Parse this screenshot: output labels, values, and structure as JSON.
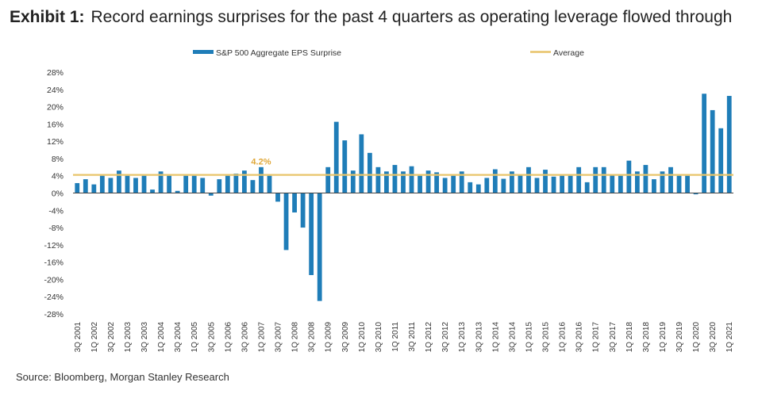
{
  "header": {
    "exhibit": "Exhibit 1:",
    "title": "Record earnings surprises for the past 4 quarters as operating leverage flowed through"
  },
  "source": "Source: Bloomberg, Morgan Stanley Research",
  "colors": {
    "bar": "#1f7db8",
    "average": "#e8c46a",
    "annotation": "#e0a83a",
    "axis": "#444444"
  },
  "chart_data": {
    "type": "bar",
    "title": "Record earnings surprises for the past 4 quarters as operating leverage flowed through",
    "series_name": "S&P 500 Aggregate EPS Surprise",
    "average_name": "Average",
    "average_value": 4.2,
    "average_label": "4.2%",
    "legend_position": "top",
    "ylim": [
      -28,
      28
    ],
    "yticks": [
      28,
      24,
      20,
      16,
      12,
      8,
      4,
      0,
      -4,
      -8,
      -12,
      -16,
      -20,
      -24,
      -28
    ],
    "ytick_labels": [
      "28%",
      "24%",
      "20%",
      "16%",
      "12%",
      "8%",
      "4%",
      "0%",
      "-4%",
      "-8%",
      "-12%",
      "-16%",
      "-20%",
      "-24%",
      "-28%"
    ],
    "grid": false,
    "categories": [
      "3Q 2001",
      "4Q 2001",
      "1Q 2002",
      "2Q 2002",
      "3Q 2002",
      "4Q 2002",
      "1Q 2003",
      "2Q 2003",
      "3Q 2003",
      "4Q 2003",
      "1Q 2004",
      "2Q 2004",
      "3Q 2004",
      "4Q 2004",
      "1Q 2005",
      "2Q 2005",
      "3Q 2005",
      "4Q 2005",
      "1Q 2006",
      "2Q 2006",
      "3Q 2006",
      "4Q 2006",
      "1Q 2007",
      "2Q 2007",
      "3Q 2007",
      "4Q 2007",
      "1Q 2008",
      "2Q 2008",
      "3Q 2008",
      "4Q 2008",
      "1Q 2009",
      "2Q 2009",
      "3Q 2009",
      "4Q 2009",
      "1Q 2010",
      "2Q 2010",
      "3Q 2010",
      "4Q 2010",
      "1Q 2011",
      "2Q 2011",
      "3Q 2011",
      "4Q 2011",
      "1Q 2012",
      "2Q 2012",
      "3Q 2012",
      "4Q 2012",
      "1Q 2013",
      "2Q 2013",
      "3Q 2013",
      "4Q 2013",
      "1Q 2014",
      "2Q 2014",
      "3Q 2014",
      "4Q 2014",
      "1Q 2015",
      "2Q 2015",
      "3Q 2015",
      "4Q 2015",
      "1Q 2016",
      "2Q 2016",
      "3Q 2016",
      "4Q 2016",
      "1Q 2017",
      "2Q 2017",
      "3Q 2017",
      "4Q 2017",
      "1Q 2018",
      "2Q 2018",
      "3Q 2018",
      "4Q 2018",
      "1Q 2019",
      "2Q 2019",
      "3Q 2019",
      "4Q 2019",
      "1Q 2020",
      "2Q 2020",
      "3Q 2020",
      "4Q 2020",
      "1Q 2021"
    ],
    "xtick_labels": [
      "3Q 2001",
      "1Q 2002",
      "3Q 2002",
      "1Q 2003",
      "3Q 2003",
      "1Q 2004",
      "3Q 2004",
      "1Q 2005",
      "3Q 2005",
      "1Q 2006",
      "3Q 2006",
      "1Q 2007",
      "3Q 2007",
      "1Q 2008",
      "3Q 2008",
      "1Q 2009",
      "3Q 2009",
      "1Q 2010",
      "3Q 2010",
      "1Q 2011",
      "3Q 2011",
      "1Q 2012",
      "3Q 2012",
      "1Q 2013",
      "3Q 2013",
      "1Q 2014",
      "3Q 2014",
      "1Q 2015",
      "3Q 2015",
      "1Q 2016",
      "3Q 2016",
      "1Q 2017",
      "3Q 2017",
      "1Q 2018",
      "3Q 2018",
      "1Q 2019",
      "3Q 2019",
      "1Q 2020",
      "3Q 2020",
      "1Q 2021"
    ],
    "values": [
      2.3,
      3.2,
      2.0,
      4.0,
      3.5,
      5.2,
      4.0,
      3.5,
      4.0,
      0.8,
      5.0,
      4.0,
      0.5,
      4.0,
      4.0,
      3.5,
      -0.6,
      3.2,
      4.0,
      4.5,
      5.2,
      3.0,
      6.0,
      4.0,
      -2.0,
      -13.2,
      -4.5,
      -8.0,
      -19.0,
      -25.0,
      6.0,
      16.5,
      12.2,
      5.2,
      13.6,
      9.3,
      6.0,
      5.0,
      6.5,
      5.0,
      6.2,
      4.0,
      5.2,
      4.8,
      3.5,
      4.0,
      5.0,
      2.5,
      2.0,
      3.5,
      5.5,
      3.3,
      5.0,
      4.2,
      6.0,
      3.5,
      5.4,
      3.8,
      4.0,
      4.0,
      6.0,
      2.5,
      6.0,
      6.0,
      4.3,
      4.0,
      7.5,
      5.0,
      6.5,
      3.2,
      5.0,
      6.0,
      4.0,
      4.0,
      -0.3,
      23.0,
      19.2,
      15.0,
      22.5
    ]
  }
}
